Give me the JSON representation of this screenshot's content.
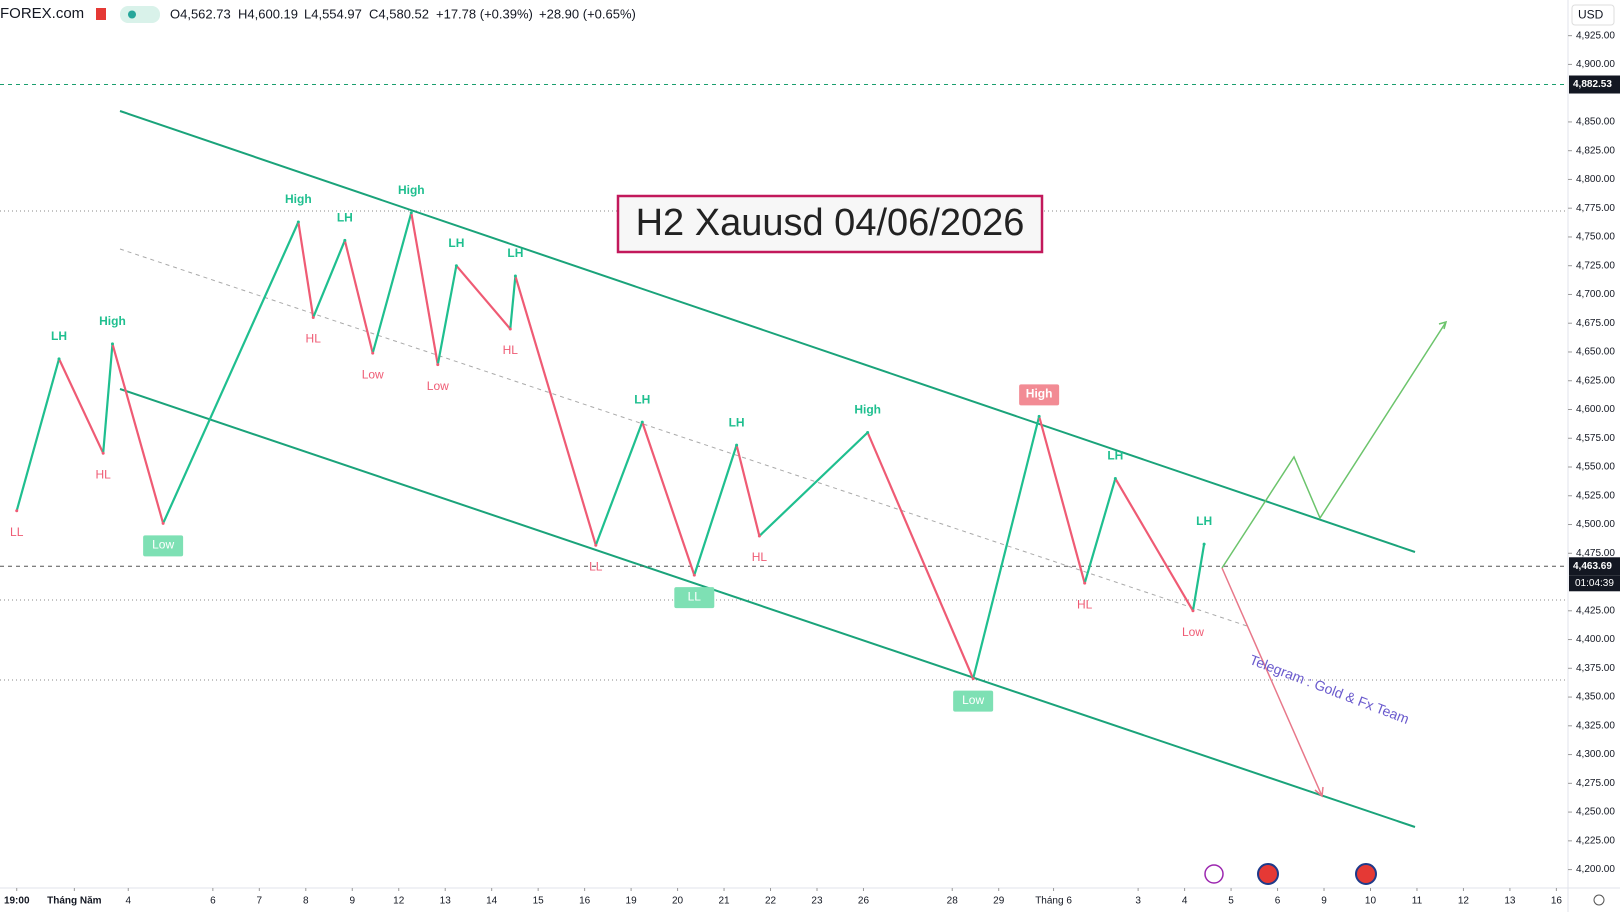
{
  "chart_data": {
    "type": "swing",
    "title": "H2 Xauusd 04/06/2026",
    "header": {
      "source": "FOREX.com",
      "open": "O4,562.73",
      "high": "H4,600.19",
      "low": "L4,554.97",
      "close": "C4,580.52",
      "change": "+17.78 (+0.39%)",
      "change2": "+28.90 (+0.65%)"
    },
    "currency": "USD",
    "annotation": "Telegram : Gold & Fx Team",
    "countdown": "01:04:39",
    "up_color": "#1fbf8f",
    "down_color": "#ef5b74",
    "xlim": [
      -5.58,
      28.16
    ],
    "xticks": [
      {
        "value": -5.22,
        "label": "19:00"
      },
      {
        "value": -3.98,
        "label": "Tháng Năm"
      },
      {
        "value": -2.82,
        "label": "4"
      },
      {
        "value": -1,
        "label": "6"
      },
      {
        "value": 0,
        "label": "7"
      },
      {
        "value": 1,
        "label": "8"
      },
      {
        "value": 2,
        "label": "9"
      },
      {
        "value": 3,
        "label": "12"
      },
      {
        "value": 4,
        "label": "13"
      },
      {
        "value": 5,
        "label": "14"
      },
      {
        "value": 6,
        "label": "15"
      },
      {
        "value": 7,
        "label": "16"
      },
      {
        "value": 8,
        "label": "19"
      },
      {
        "value": 9,
        "label": "20"
      },
      {
        "value": 10,
        "label": "21"
      },
      {
        "value": 11,
        "label": "22"
      },
      {
        "value": 12,
        "label": "23"
      },
      {
        "value": 13,
        "label": "26"
      },
      {
        "value": 14.91,
        "label": "28"
      },
      {
        "value": 15.91,
        "label": "29"
      },
      {
        "value": 17.09,
        "label": "Tháng 6"
      },
      {
        "value": 18.91,
        "label": "3"
      },
      {
        "value": 19.91,
        "label": "4"
      },
      {
        "value": 20.91,
        "label": "5"
      },
      {
        "value": 21.91,
        "label": "6"
      },
      {
        "value": 22.91,
        "label": "9"
      },
      {
        "value": 23.91,
        "label": "10"
      },
      {
        "value": 24.91,
        "label": "11"
      },
      {
        "value": 25.91,
        "label": "12"
      },
      {
        "value": 26.91,
        "label": "13"
      },
      {
        "value": 27.91,
        "label": "16"
      }
    ],
    "ylim": [
      4184,
      4956
    ],
    "yticks": [
      {
        "value": 4925,
        "label": "4,925.00"
      },
      {
        "value": 4900,
        "label": "4,900.00"
      },
      {
        "value": 4850,
        "label": "4,850.00"
      },
      {
        "value": 4825,
        "label": "4,825.00"
      },
      {
        "value": 4800,
        "label": "4,800.00"
      },
      {
        "value": 4775,
        "label": "4,775.00"
      },
      {
        "value": 4750,
        "label": "4,750.00"
      },
      {
        "value": 4725,
        "label": "4,725.00"
      },
      {
        "value": 4700,
        "label": "4,700.00"
      },
      {
        "value": 4675,
        "label": "4,675.00"
      },
      {
        "value": 4650,
        "label": "4,650.00"
      },
      {
        "value": 4625,
        "label": "4,625.00"
      },
      {
        "value": 4600,
        "label": "4,600.00"
      },
      {
        "value": 4575,
        "label": "4,575.00"
      },
      {
        "value": 4550,
        "label": "4,550.00"
      },
      {
        "value": 4525,
        "label": "4,525.00"
      },
      {
        "value": 4500,
        "label": "4,500.00"
      },
      {
        "value": 4475,
        "label": "4,475.00"
      },
      {
        "value": 4425,
        "label": "4,425.00"
      },
      {
        "value": 4400,
        "label": "4,400.00"
      },
      {
        "value": 4375,
        "label": "4,375.00"
      },
      {
        "value": 4350,
        "label": "4,350.00"
      },
      {
        "value": 4325,
        "label": "4,325.00"
      },
      {
        "value": 4300,
        "label": "4,300.00"
      },
      {
        "value": 4275,
        "label": "4,275.00"
      },
      {
        "value": 4250,
        "label": "4,250.00"
      },
      {
        "value": 4225,
        "label": "4,225.00"
      },
      {
        "value": 4200,
        "label": "4,200.00"
      }
    ],
    "price_lines": [
      {
        "value": 4882.53,
        "label": "4,882.53",
        "color": "#1a9e6e"
      },
      {
        "value": 4463.69,
        "label": "4,463.69",
        "color": "#555555"
      }
    ],
    "swings": {
      "x": [
        -5.22,
        -4.31,
        -3.36,
        -3.16,
        -2.07,
        0.84,
        1.16,
        1.84,
        2.44,
        3.27,
        3.84,
        4.24,
        5.4,
        5.51,
        7.24,
        8.24,
        9.36,
        10.27,
        10.76,
        13.09,
        15.36,
        16.78,
        17.76,
        18.42,
        20.09,
        20.33
      ],
      "values": [
        4512,
        4644,
        4562,
        4657,
        4501,
        4763,
        4680,
        4747,
        4649,
        4771,
        4639,
        4725,
        4670,
        4716,
        4482,
        4589,
        4456,
        4569,
        4490,
        4580,
        4366,
        4594,
        4449,
        4540,
        4425,
        4483
      ],
      "labels": [
        "LL",
        "LH",
        "HL",
        "High",
        "Low",
        "High",
        "HL",
        "LH",
        "Low",
        "High",
        "Low",
        "LH",
        "HL",
        "LH",
        "LL",
        "LH",
        "LL",
        "LH",
        "HL",
        "High",
        "Low",
        "High",
        "HL",
        "LH",
        "Low",
        "LH"
      ],
      "boxed": [
        false,
        false,
        false,
        false,
        true,
        false,
        false,
        false,
        false,
        false,
        false,
        false,
        false,
        false,
        false,
        false,
        true,
        false,
        false,
        false,
        true,
        true,
        false,
        false,
        false,
        false
      ]
    }
  }
}
